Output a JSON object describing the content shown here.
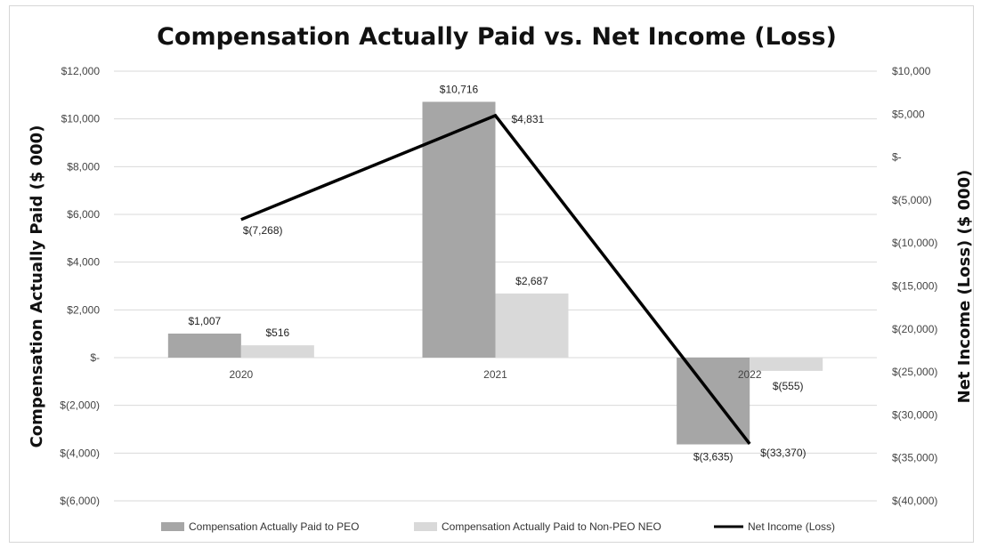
{
  "chart_data": {
    "type": "bar",
    "title": "Compensation Actually Paid vs. Net Income (Loss)",
    "ylabel": "Compensation Actually Paid ($ 000)",
    "y2label": "Net Income (Loss) ($ 000)",
    "categories": [
      "2020",
      "2021",
      "2022"
    ],
    "ylim": [
      -6000,
      12000
    ],
    "y2lim": [
      -40000,
      10000
    ],
    "yticks": [
      12000,
      10000,
      8000,
      6000,
      4000,
      2000,
      0,
      -2000,
      -4000,
      -6000
    ],
    "ytick_labels": [
      "$12,000",
      "$10,000",
      "$8,000",
      "$6,000",
      "$4,000",
      "$2,000",
      "$-",
      "$(2,000)",
      "$(4,000)",
      "$(6,000)"
    ],
    "y2ticks": [
      10000,
      5000,
      0,
      -5000,
      -10000,
      -15000,
      -20000,
      -25000,
      -30000,
      -35000,
      -40000
    ],
    "y2tick_labels": [
      "$10,000",
      "$5,000",
      "$-",
      "$(5,000)",
      "$(10,000)",
      "$(15,000)",
      "$(20,000)",
      "$(25,000)",
      "$(30,000)",
      "$(35,000)",
      "$(40,000)"
    ],
    "grid": true,
    "legend_position": "bottom",
    "series": [
      {
        "name": "Compensation Actually Paid to PEO",
        "kind": "bar",
        "axis": "left",
        "color": "#a6a6a6",
        "values": [
          1007,
          10716,
          -3635
        ],
        "labels": [
          "$1,007",
          "$10,716",
          "$(3,635)"
        ]
      },
      {
        "name": "Compensation Actually Paid to Non-PEO NEO",
        "kind": "bar",
        "axis": "left",
        "color": "#d9d9d9",
        "values": [
          516,
          2687,
          -555
        ],
        "labels": [
          "$516",
          "$2,687",
          "$(555)"
        ]
      },
      {
        "name": "Net Income (Loss)",
        "kind": "line",
        "axis": "right",
        "color": "#000000",
        "values": [
          -7268,
          4831,
          -33370
        ],
        "labels": [
          "$(7,268)",
          "$4,831",
          "$(33,370)"
        ]
      }
    ]
  }
}
